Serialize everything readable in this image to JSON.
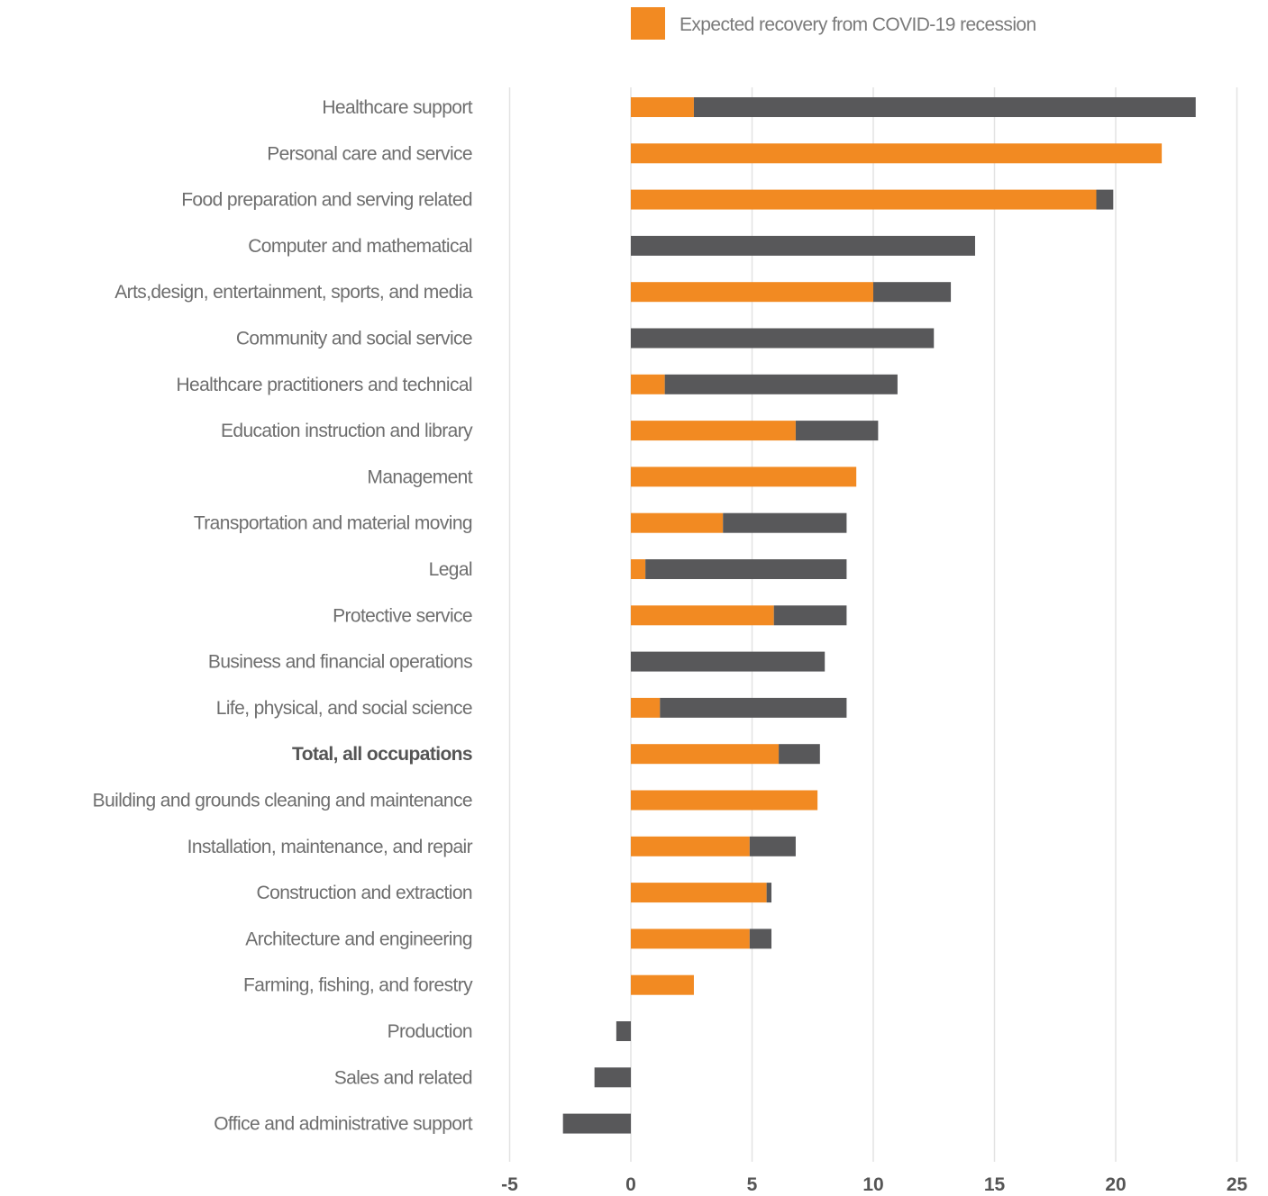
{
  "chart_data": {
    "type": "bar",
    "orientation": "horizontal",
    "stacked": true,
    "legend_position": "top-right",
    "grid": true,
    "xlim": [
      -5,
      25
    ],
    "x_ticks": [
      "-5",
      "0",
      "5",
      "10",
      "15",
      "20",
      "25"
    ],
    "x_tick_values": [
      -5,
      0,
      5,
      10,
      15,
      20,
      25
    ],
    "colors": {
      "orange": "#f28a22",
      "gray": "#58585a",
      "grid": "#e3e3e3",
      "label": "#6e6e6e"
    },
    "legend": [
      {
        "label": "Expected recovery from COVID-19 recession",
        "color": "#f28a22"
      }
    ],
    "categories": [
      "Healthcare support",
      "Personal care and service",
      "Food preparation and serving related",
      "Computer and mathematical",
      "Arts,design, entertainment, sports, and media",
      "Community and social service",
      "Healthcare practitioners and technical",
      "Education instruction and library",
      "Management",
      "Transportation and material moving",
      "Legal",
      "Protective service",
      "Business and financial operations",
      "Life, physical, and social science",
      "Total, all occupations",
      "Building and grounds cleaning and maintenance",
      "Installation, maintenance, and repair",
      "Construction and extraction",
      "Architecture and engineering",
      "Farming, fishing, and forestry",
      "Production",
      "Sales and related",
      "Office and administrative support"
    ],
    "bold_categories": [
      "Total, all occupations"
    ],
    "series": [
      {
        "name": "Expected recovery from COVID-19 recession",
        "color": "#f28a22",
        "values": [
          2.6,
          21.9,
          19.2,
          0,
          10.0,
          0,
          1.4,
          6.8,
          9.3,
          3.8,
          0.6,
          5.9,
          0,
          1.2,
          6.1,
          7.7,
          4.9,
          5.6,
          4.9,
          2.6,
          0,
          0,
          0
        ]
      },
      {
        "color": "#58585a",
        "values": [
          20.7,
          0,
          0.7,
          14.2,
          3.2,
          12.5,
          9.6,
          3.4,
          0,
          5.1,
          8.3,
          3.0,
          8.0,
          7.7,
          1.7,
          0,
          1.9,
          0.2,
          0.9,
          0,
          -0.6,
          -1.5,
          -2.8
        ]
      }
    ]
  }
}
